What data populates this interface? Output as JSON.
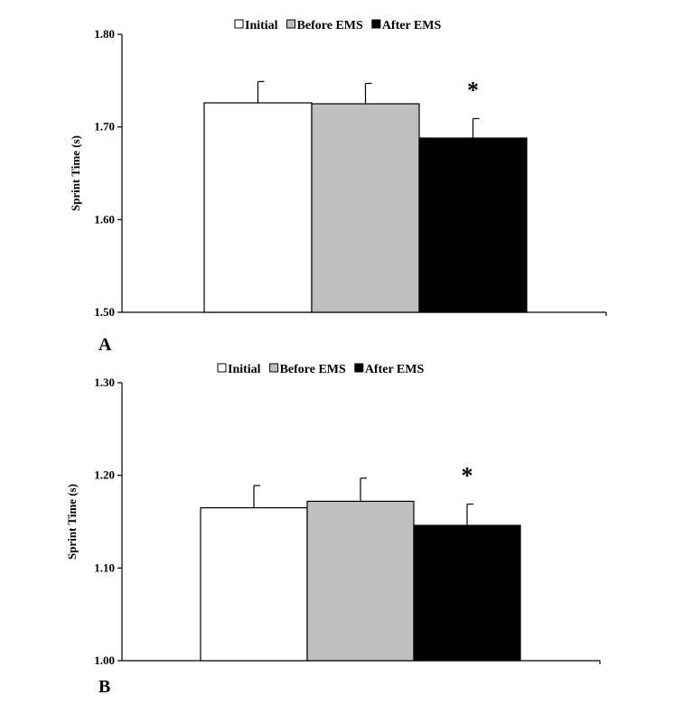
{
  "chart_data": [
    {
      "type": "bar",
      "panel_label": "A",
      "categories": [
        "Initial",
        "Before EMS",
        "After EMS"
      ],
      "values": [
        1.726,
        1.725,
        1.688
      ],
      "error": [
        0.023,
        0.022,
        0.021
      ],
      "colors": [
        "#ffffff",
        "#bfbfbf",
        "#000000"
      ],
      "legend": [
        "Initial",
        "Before EMS",
        "After EMS"
      ],
      "legend_position": "top",
      "ylabel": "Sprint Time (s)",
      "ylim": [
        1.5,
        1.8
      ],
      "yticks": [
        "1.50",
        "1.60",
        "1.70",
        "1.80"
      ],
      "yticks_values": [
        1.5,
        1.6,
        1.7,
        1.8
      ],
      "annotation": "*",
      "annotation_category": "After EMS",
      "grid": false
    },
    {
      "type": "bar",
      "panel_label": "B",
      "categories": [
        "Initial",
        "Before EMS",
        "After EMS"
      ],
      "values": [
        1.165,
        1.172,
        1.146
      ],
      "error": [
        0.024,
        0.025,
        0.023
      ],
      "colors": [
        "#ffffff",
        "#bfbfbf",
        "#000000"
      ],
      "legend": [
        "Initial",
        "Before EMS",
        "After EMS"
      ],
      "legend_position": "top",
      "ylabel": "Sprint Time (s)",
      "ylim": [
        1.0,
        1.3
      ],
      "yticks": [
        "1.00",
        "1.10",
        "1.20",
        "1.30"
      ],
      "yticks_values": [
        1.0,
        1.1,
        1.2,
        1.3
      ],
      "annotation": "*",
      "annotation_category": "After EMS",
      "grid": false
    }
  ]
}
